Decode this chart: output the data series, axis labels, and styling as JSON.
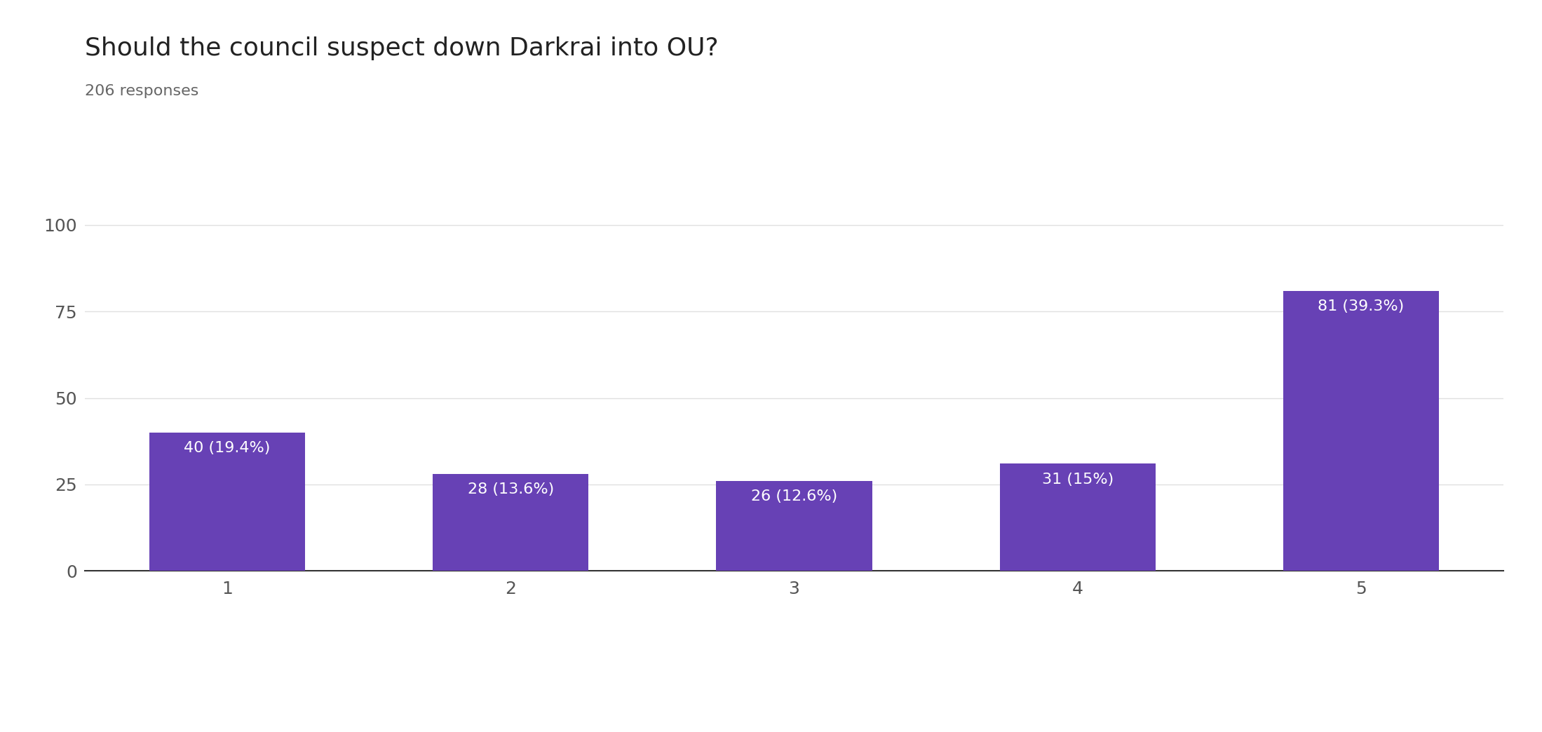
{
  "title": "Should the council suspect down Darkrai into OU?",
  "subtitle": "206 responses",
  "categories": [
    "1",
    "2",
    "3",
    "4",
    "5"
  ],
  "values": [
    40,
    28,
    26,
    31,
    81
  ],
  "labels": [
    "40 (19.4%)",
    "28 (13.6%)",
    "26 (12.6%)",
    "31 (15%)",
    "81 (39.3%)"
  ],
  "bar_color": "#6741b5",
  "background_color": "#ffffff",
  "ylim": [
    0,
    110
  ],
  "yticks": [
    0,
    25,
    50,
    75,
    100
  ],
  "grid_color": "#e0e0e0",
  "title_fontsize": 26,
  "subtitle_fontsize": 16,
  "tick_fontsize": 18,
  "label_fontsize": 16,
  "label_color": "#ffffff",
  "tick_color": "#555555",
  "bottom_spine_color": "#333333"
}
